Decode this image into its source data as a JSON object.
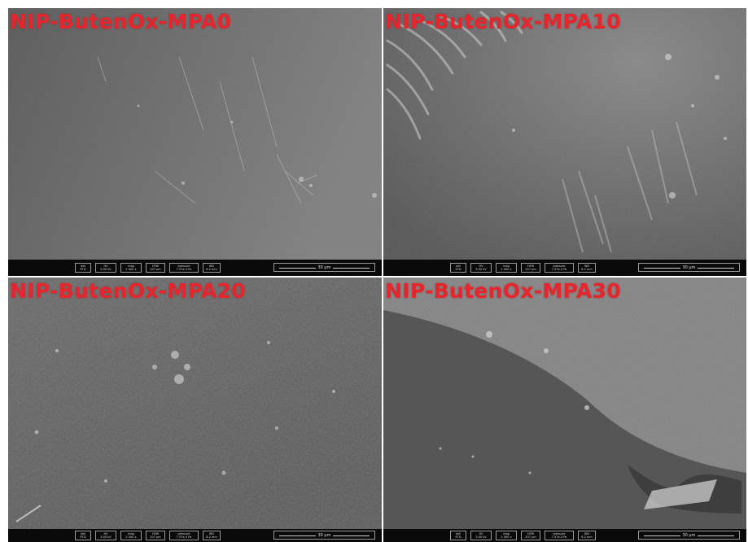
{
  "panels": [
    {
      "title": "NIP-ButenOx-MPA0",
      "scale_bar": "30 µm"
    },
    {
      "title": "NIP-ButenOx-MPA10",
      "scale_bar": "30 µm"
    },
    {
      "title": "NIP-ButenOx-MPA20",
      "scale_bar": "30 µm"
    },
    {
      "title": "NIP-ButenOx-MPA30",
      "scale_bar": "30 µm"
    }
  ],
  "databar": {
    "cells": [
      {
        "k": "det",
        "v": "ETD"
      },
      {
        "k": "HV",
        "v": "5.00 kV"
      },
      {
        "k": "mag",
        "v": "2 000 x"
      },
      {
        "k": "HFW",
        "v": "207 µm"
      },
      {
        "k": "pressure",
        "v": "7.57e-3 Pa"
      },
      {
        "k": "WD",
        "v": "8.2 mm"
      }
    ]
  },
  "colors": {
    "title": "#e8242c",
    "databar": "#0a0a0a",
    "surface_base": "#5f5f5f"
  }
}
